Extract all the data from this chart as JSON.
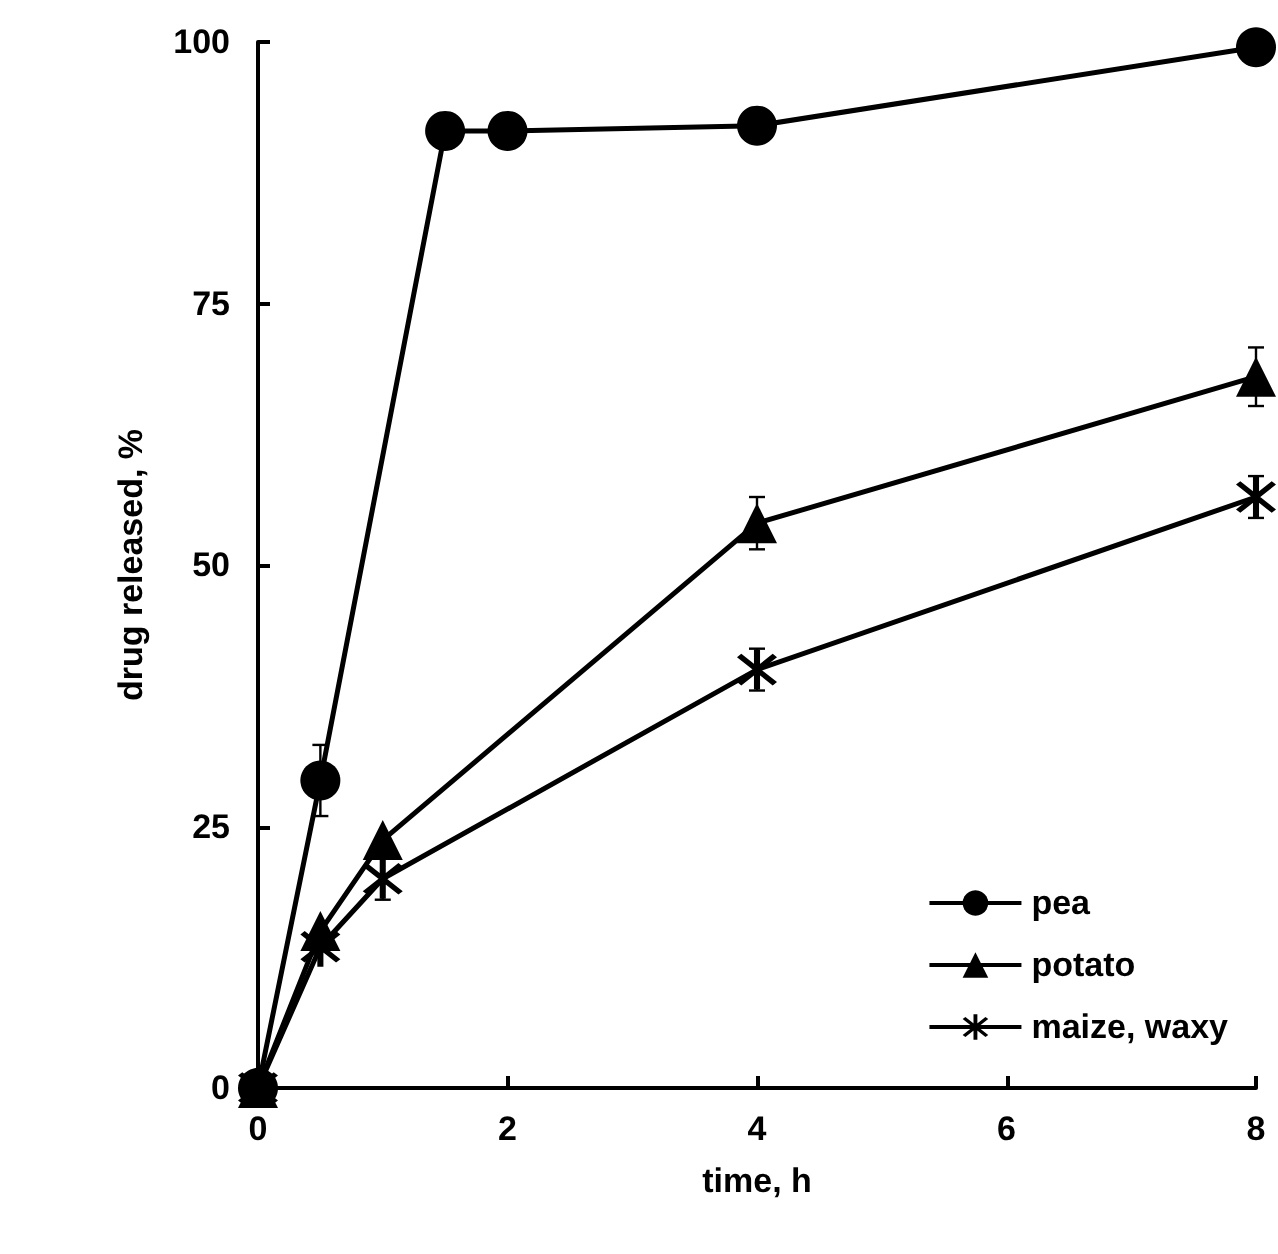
{
  "chart_data": {
    "type": "line",
    "xlabel": "time, h",
    "ylabel": "drug released, %",
    "xlim": [
      0,
      8
    ],
    "xticks": [
      0,
      2,
      4,
      6,
      8
    ],
    "ylim": [
      0,
      100
    ],
    "yticks": [
      0,
      25,
      50,
      75,
      100
    ],
    "grid": false,
    "legend": "bottom right",
    "line_style": "solid",
    "series": [
      {
        "name": "pea",
        "color": "#000000",
        "marker": "circle",
        "x": [
          0,
          0.5,
          1.5,
          2,
          4,
          8
        ],
        "values": [
          0,
          29.4,
          91.5,
          91.5,
          92,
          99.5
        ],
        "errors": [
          null,
          3.4,
          null,
          null,
          null,
          null
        ]
      },
      {
        "name": "potato",
        "color": "#000000",
        "marker": "triangle",
        "x": [
          0,
          0.5,
          1,
          4,
          8
        ],
        "values": [
          0,
          15,
          23.7,
          54,
          68
        ],
        "errors": [
          null,
          null,
          null,
          2.5,
          2.8
        ]
      },
      {
        "name": "maize, waxy",
        "color": "#000000",
        "marker": "cross",
        "x": [
          0,
          0.5,
          1,
          4,
          8
        ],
        "values": [
          0,
          13.5,
          20,
          40,
          56.5
        ],
        "errors": [
          null,
          null,
          2,
          2,
          2
        ]
      }
    ]
  }
}
